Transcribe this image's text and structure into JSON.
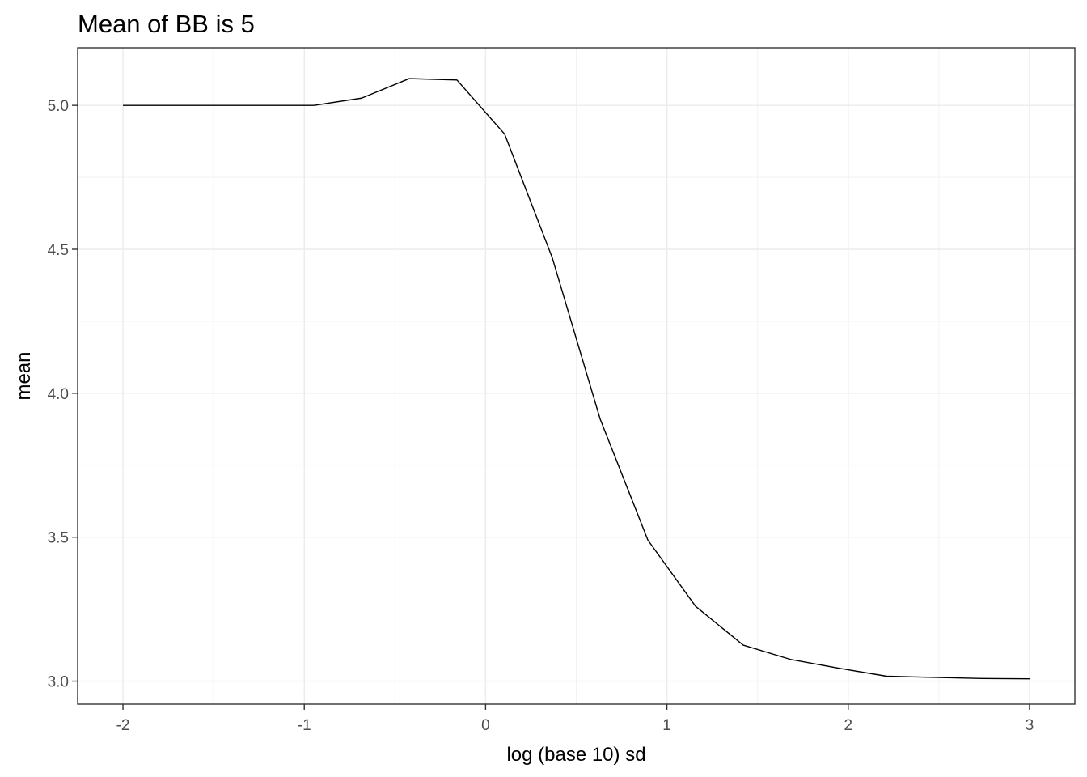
{
  "chart_data": {
    "type": "line",
    "title": "Mean of BB is 5",
    "xlabel": "log (base 10) sd",
    "ylabel": "mean",
    "xlim": [
      -2.25,
      3.25
    ],
    "ylim": [
      2.92,
      5.2
    ],
    "x_ticks": [
      -2,
      -1,
      0,
      1,
      2,
      3
    ],
    "x_tick_labels": [
      "-2",
      "-1",
      "0",
      "1",
      "2",
      "3"
    ],
    "y_ticks": [
      3.0,
      3.5,
      4.0,
      4.5,
      5.0
    ],
    "y_tick_labels": [
      "3.0",
      "3.5",
      "4.0",
      "4.5",
      "5.0"
    ],
    "grid": true,
    "legend": "none",
    "series": [
      {
        "x": [
          -2.0,
          -1.737,
          -1.474,
          -1.211,
          -0.947,
          -0.684,
          -0.421,
          -0.158,
          0.105,
          0.368,
          0.632,
          0.895,
          1.158,
          1.421,
          1.684,
          1.947,
          2.211,
          2.474,
          2.737,
          3.0
        ],
        "y": [
          5.0,
          5.0,
          5.0,
          5.0,
          5.0,
          5.025,
          5.093,
          5.088,
          4.9,
          4.47,
          3.91,
          3.49,
          3.26,
          3.125,
          3.075,
          3.045,
          3.017,
          3.013,
          3.009,
          3.008
        ]
      }
    ]
  }
}
